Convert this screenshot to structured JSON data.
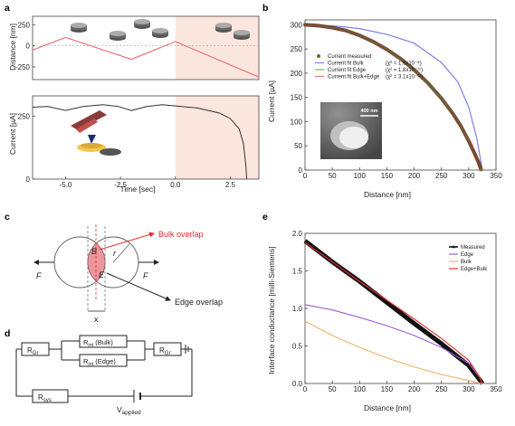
{
  "panels": {
    "a": "a",
    "b": "b",
    "c": "c",
    "d": "d",
    "e": "e"
  },
  "colors": {
    "red": "#e03030",
    "pink_line": "#e8707a",
    "shade": "#fbe6de",
    "purple": "#9b5fd6",
    "orange": "#f2b26b",
    "blue": "#7f7fe8",
    "green": "#6cbf50",
    "black": "#222222"
  },
  "chart_data": [
    {
      "id": "a-top",
      "type": "line",
      "ylabel": "Distance [nm]",
      "ylim": [
        -400,
        350
      ],
      "yticks": [
        250,
        0,
        -250
      ],
      "xlim": [
        -6.5,
        3.8
      ],
      "x": [
        -6.5,
        -5.0,
        -2.0,
        0.0,
        3.8
      ],
      "y": [
        -50,
        100,
        -160,
        50,
        -370
      ]
    },
    {
      "id": "a-bottom",
      "type": "line",
      "ylabel": "Current [µA]",
      "xlabel": "Time [sec]",
      "ylim": [
        0,
        330
      ],
      "yticks": [
        250,
        0
      ],
      "xlim": [
        -6.5,
        3.8
      ],
      "xticks": [
        -5.0,
        -2.5,
        0.0,
        2.5
      ],
      "x": [
        -6.5,
        -5.8,
        -5.0,
        -4.2,
        -3.3,
        -2.6,
        -2.0,
        -1.3,
        -0.6,
        0.0,
        1.0,
        2.0,
        2.5,
        2.9,
        3.1,
        3.2,
        3.25
      ],
      "y": [
        285,
        288,
        272,
        288,
        295,
        288,
        272,
        288,
        295,
        290,
        282,
        262,
        240,
        200,
        140,
        60,
        0
      ]
    },
    {
      "id": "b",
      "type": "scatter",
      "xlabel": "Distance [nm]",
      "ylabel": "Current [µA]",
      "xlim": [
        0,
        350
      ],
      "ylim": [
        0,
        310
      ],
      "xticks": [
        0,
        50,
        100,
        150,
        200,
        250,
        300,
        350
      ],
      "yticks": [
        0,
        50,
        100,
        150,
        200,
        250,
        300
      ],
      "legend": [
        "Current measured",
        "Current fit Bulk",
        "Current fit Edge",
        "Current fit Bulk+Edge"
      ],
      "chi2": [
        "(χ² = 1.9x10⁻⁸)",
        "(χ² = 1.8x10⁻¹¹)",
        "(χ² = 3.1x10⁻¹²)"
      ],
      "inset_scale": "400 nm",
      "series": [
        {
          "name": "Current measured",
          "x": [
            0,
            25,
            50,
            75,
            100,
            125,
            150,
            175,
            200,
            225,
            250,
            270,
            285,
            300,
            310,
            318,
            323
          ],
          "y": [
            300,
            298,
            294,
            288,
            278,
            265,
            249,
            230,
            207,
            180,
            148,
            118,
            92,
            60,
            36,
            16,
            0
          ]
        },
        {
          "name": "Current fit Bulk",
          "x": [
            0,
            50,
            100,
            150,
            200,
            250,
            280,
            300,
            315,
            325
          ],
          "y": [
            300,
            298,
            292,
            280,
            262,
            222,
            182,
            130,
            65,
            0
          ]
        },
        {
          "name": "Current fit Edge",
          "x": [
            0,
            25,
            50,
            75,
            100,
            125,
            150,
            175,
            200,
            225,
            250,
            270,
            285,
            300,
            310,
            318,
            323
          ],
          "y": [
            300,
            298,
            294,
            288,
            278,
            265,
            249,
            230,
            207,
            180,
            148,
            118,
            92,
            60,
            36,
            16,
            0
          ]
        },
        {
          "name": "Current fit Bulk+Edge",
          "x": [
            0,
            25,
            50,
            75,
            100,
            125,
            150,
            175,
            200,
            225,
            250,
            270,
            285,
            300,
            310,
            318,
            323
          ],
          "y": [
            300,
            298,
            294,
            288,
            278,
            265,
            249,
            230,
            207,
            180,
            148,
            118,
            92,
            60,
            36,
            16,
            0
          ]
        }
      ]
    },
    {
      "id": "e",
      "type": "line",
      "xlabel": "Distance [nm]",
      "ylabel": "Interface conductance [milli-Siemens]",
      "xlim": [
        0,
        350
      ],
      "ylim": [
        0,
        2.0
      ],
      "xticks": [
        0,
        50,
        100,
        150,
        200,
        250,
        300,
        350
      ],
      "yticks": [
        0.0,
        0.5,
        1.0,
        1.5,
        2.0
      ],
      "legend": [
        "Measured",
        "Edge",
        "Bulk",
        "Edge+Bulk"
      ],
      "series": [
        {
          "name": "Measured",
          "x": [
            0,
            50,
            100,
            150,
            200,
            250,
            300,
            320,
            325
          ],
          "y": [
            1.9,
            1.62,
            1.36,
            1.08,
            0.8,
            0.53,
            0.24,
            0.05,
            0.0
          ]
        },
        {
          "name": "Edge",
          "x": [
            0,
            50,
            100,
            150,
            200,
            250,
            300,
            320,
            325
          ],
          "y": [
            1.05,
            0.98,
            0.88,
            0.77,
            0.64,
            0.48,
            0.27,
            0.08,
            0.0
          ]
        },
        {
          "name": "Bulk",
          "x": [
            0,
            50,
            100,
            150,
            200,
            250,
            300,
            320,
            325
          ],
          "y": [
            0.83,
            0.64,
            0.48,
            0.34,
            0.22,
            0.12,
            0.04,
            0.005,
            0.0
          ]
        },
        {
          "name": "Edge+Bulk",
          "x": [
            0,
            50,
            100,
            150,
            200,
            250,
            300,
            320,
            325
          ],
          "y": [
            1.88,
            1.62,
            1.36,
            1.11,
            0.86,
            0.6,
            0.31,
            0.085,
            0.0
          ]
        }
      ]
    }
  ],
  "c": {
    "B": "B",
    "r": "r",
    "E": "E",
    "F": "F",
    "x": "x",
    "bulk": "Bulk overlap",
    "edge": "Edge overlap"
  },
  "d": {
    "rgr": "R",
    "gr": "Gr",
    "rint": "R",
    "int": "int",
    "bulk": "(Bulk)",
    "edge": "(Edge)",
    "rsys": "R",
    "sys": "sys",
    "vapp": "V",
    "applied": "applied"
  }
}
